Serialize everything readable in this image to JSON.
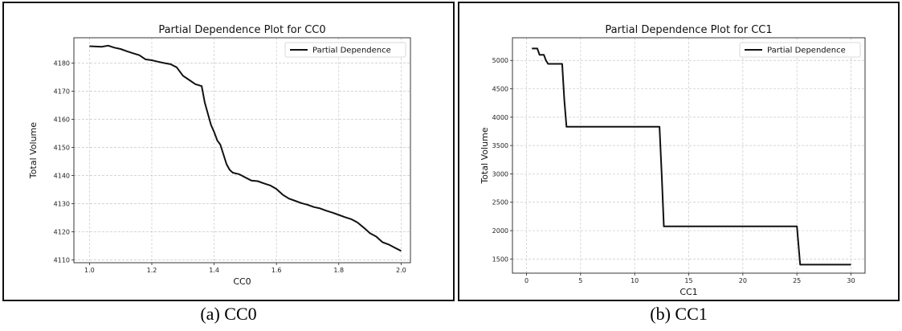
{
  "figures": [
    {
      "caption": "(a) CC0"
    },
    {
      "caption": "(b) CC1"
    }
  ],
  "chart_data": [
    {
      "type": "line",
      "title": "Partial Dependence Plot for CC0",
      "xlabel": "CC0",
      "ylabel": "Total Volume",
      "xlim": [
        0.95,
        2.03
      ],
      "ylim": [
        4109,
        4189
      ],
      "xticks": [
        1.0,
        1.2,
        1.4,
        1.6,
        1.8,
        2.0
      ],
      "xtick_labels": [
        "1.0",
        "1.2",
        "1.4",
        "1.6",
        "1.8",
        "2.0"
      ],
      "yticks": [
        4110,
        4120,
        4130,
        4140,
        4150,
        4160,
        4170,
        4180
      ],
      "ytick_labels": [
        "4110",
        "4120",
        "4130",
        "4140",
        "4150",
        "4160",
        "4170",
        "4180"
      ],
      "grid": true,
      "legend": "top-right",
      "series": [
        {
          "name": "Partial Dependence",
          "color": "#111111",
          "x": [
            1.0,
            1.04,
            1.06,
            1.08,
            1.1,
            1.12,
            1.14,
            1.16,
            1.18,
            1.2,
            1.22,
            1.24,
            1.26,
            1.28,
            1.3,
            1.32,
            1.34,
            1.36,
            1.37,
            1.38,
            1.39,
            1.4,
            1.41,
            1.42,
            1.44,
            1.45,
            1.46,
            1.48,
            1.5,
            1.52,
            1.54,
            1.56,
            1.58,
            1.6,
            1.62,
            1.64,
            1.66,
            1.68,
            1.7,
            1.72,
            1.74,
            1.76,
            1.78,
            1.8,
            1.82,
            1.84,
            1.86,
            1.88,
            1.9,
            1.92,
            1.94,
            1.96,
            1.98,
            2.0
          ],
          "y": [
            4186,
            4185.8,
            4186.2,
            4185.5,
            4185,
            4184.2,
            4183.5,
            4182.8,
            4181.3,
            4181,
            4180.5,
            4180,
            4179.6,
            4178.5,
            4175.5,
            4174,
            4172.5,
            4171.8,
            4166,
            4162,
            4158,
            4155.5,
            4152.5,
            4151,
            4144,
            4142,
            4141,
            4140.5,
            4139.3,
            4138.2,
            4138,
            4137.2,
            4136.5,
            4135.2,
            4133.2,
            4131.8,
            4131,
            4130.2,
            4129.6,
            4128.8,
            4128.3,
            4127.5,
            4126.8,
            4126,
            4125.2,
            4124.5,
            4123.3,
            4121.5,
            4119.5,
            4118.3,
            4116.3,
            4115.5,
            4114.3,
            4113.2
          ]
        }
      ]
    },
    {
      "type": "line",
      "title": "Partial Dependence Plot for CC1",
      "xlabel": "CC1",
      "ylabel": "Total Volume",
      "xlim": [
        -1.3,
        31.3
      ],
      "ylim": [
        1250,
        5400
      ],
      "xticks": [
        0,
        5,
        10,
        15,
        20,
        25,
        30
      ],
      "xtick_labels": [
        "0",
        "5",
        "10",
        "15",
        "20",
        "25",
        "30"
      ],
      "yticks": [
        1500,
        2000,
        2500,
        3000,
        3500,
        4000,
        4500,
        5000
      ],
      "ytick_labels": [
        "1500",
        "2000",
        "2500",
        "3000",
        "3500",
        "4000",
        "4500",
        "5000"
      ],
      "grid": true,
      "legend": "top-right",
      "series": [
        {
          "name": "Partial Dependence",
          "color": "#111111",
          "x": [
            0.5,
            1.0,
            1.2,
            1.6,
            1.8,
            2.0,
            3.3,
            3.5,
            3.7,
            12.3,
            12.5,
            12.7,
            25.0,
            25.3,
            30
          ],
          "y": [
            5210,
            5210,
            5100,
            5100,
            5000,
            4940,
            4940,
            4300,
            3830,
            3830,
            3000,
            2075,
            2075,
            1400,
            1400
          ]
        }
      ]
    }
  ]
}
